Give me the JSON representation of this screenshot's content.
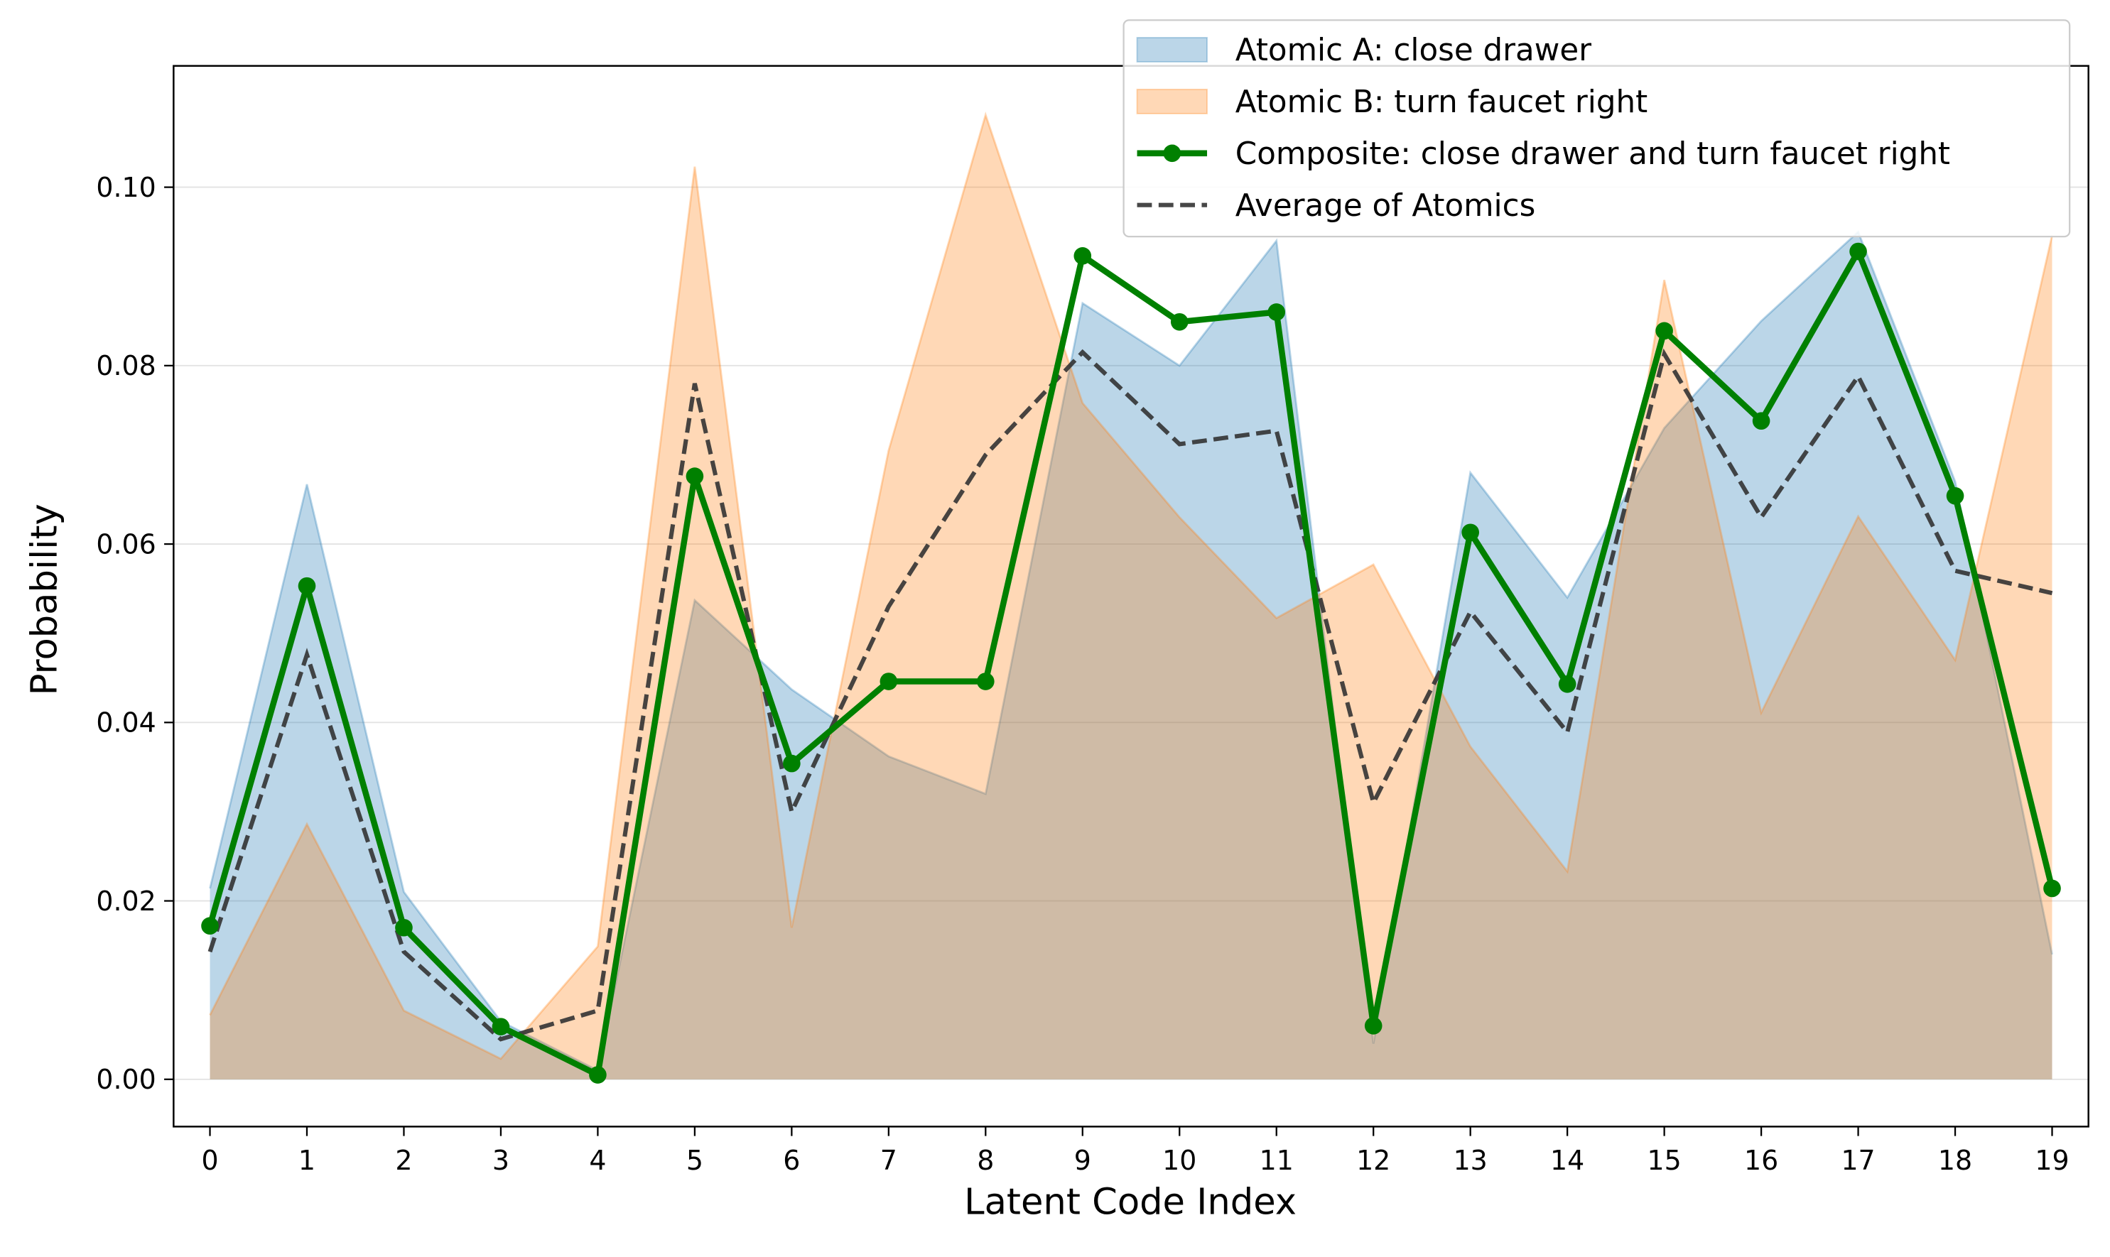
{
  "chart_data": {
    "type": "line",
    "x_label": "Latent Code Index",
    "y_label": "Probability",
    "x": [
      0,
      1,
      2,
      3,
      4,
      5,
      6,
      7,
      8,
      9,
      10,
      11,
      12,
      13,
      14,
      15,
      16,
      17,
      18,
      19
    ],
    "xlim": [
      -0.375,
      19.375
    ],
    "xticks": [
      0,
      1,
      2,
      3,
      4,
      5,
      6,
      7,
      8,
      9,
      10,
      11,
      12,
      13,
      14,
      15,
      16,
      17,
      18,
      19
    ],
    "ylim": [
      -0.0053,
      0.1136
    ],
    "yticks": [
      {
        "value": 0,
        "label": "0.00"
      },
      {
        "value": 0.02,
        "label": "0.02"
      },
      {
        "value": 0.04,
        "label": "0.04"
      },
      {
        "value": 0.06,
        "label": "0.06"
      },
      {
        "value": 0.08,
        "label": "0.08"
      },
      {
        "value": 0.1,
        "label": "0.10"
      }
    ],
    "grid": true,
    "legend": "upper right",
    "series": [
      {
        "name": "Atomic A: close drawer",
        "color": "#1f77b4",
        "style": "area",
        "values": [
          0.0214,
          0.0667,
          0.021,
          0.0065,
          0.001,
          0.0537,
          0.0437,
          0.0362,
          0.032,
          0.087,
          0.08,
          0.094,
          0.004,
          0.068,
          0.054,
          0.073,
          0.085,
          0.095,
          0.067,
          0.014
        ]
      },
      {
        "name": "Atomic B: turn faucet right",
        "color": "#ff7f0e",
        "style": "area",
        "values": [
          0.0072,
          0.0286,
          0.0077,
          0.0023,
          0.0149,
          0.1023,
          0.017,
          0.0705,
          0.1081,
          0.0758,
          0.063,
          0.0517,
          0.0577,
          0.0373,
          0.0233,
          0.0896,
          0.0411,
          0.0631,
          0.047,
          0.0946
        ]
      },
      {
        "name": "Composite: close drawer and turn faucet right",
        "color": "#008000",
        "style": "marker-line",
        "values": [
          0.0172,
          0.0553,
          0.017,
          0.0059,
          0.0005,
          0.0676,
          0.0354,
          0.0446,
          0.0446,
          0.0923,
          0.0849,
          0.086,
          0.006,
          0.0613,
          0.0443,
          0.0839,
          0.0738,
          0.0928,
          0.0654,
          0.0214
        ]
      },
      {
        "name": "Average of Atomics",
        "color": "#333333",
        "style": "dashed",
        "values": [
          0.0143,
          0.0476,
          0.0143,
          0.0045,
          0.0077,
          0.078,
          0.03,
          0.053,
          0.07,
          0.0815,
          0.0712,
          0.0727,
          0.031,
          0.0524,
          0.0389,
          0.0813,
          0.063,
          0.0788,
          0.057,
          0.0545
        ]
      }
    ]
  }
}
